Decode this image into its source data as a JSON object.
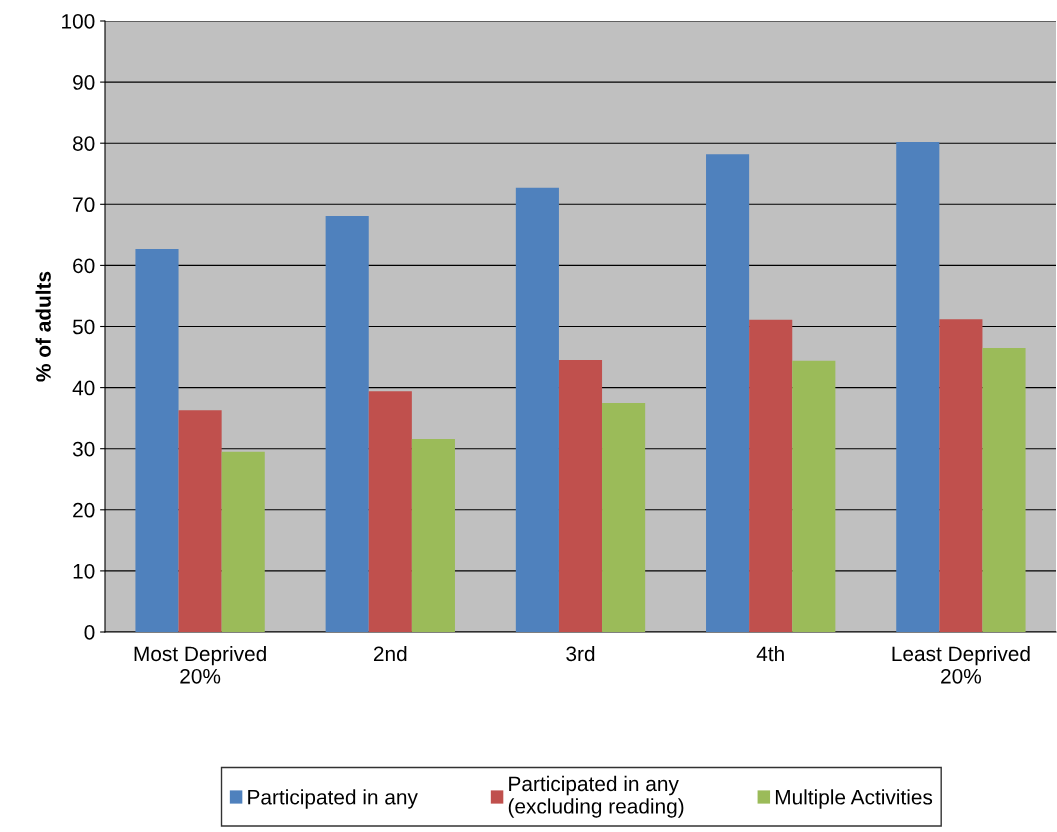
{
  "chart_data": {
    "type": "bar",
    "ylabel": "% of adults",
    "categories": [
      "Most Deprived\n20%",
      "2nd",
      "3rd",
      "4th",
      "Least Deprived\n20%"
    ],
    "series": [
      {
        "name": "Participated in any",
        "color": "#4f81bd",
        "values": [
          62.7,
          68.1,
          72.7,
          78.2,
          80.2
        ]
      },
      {
        "name": "Participated in any\n(excluding reading)",
        "color": "#c0504d",
        "values": [
          36.3,
          39.4,
          44.5,
          51.1,
          51.2
        ]
      },
      {
        "name": "Multiple Activities",
        "color": "#9bbb59",
        "values": [
          29.5,
          31.6,
          37.5,
          44.4,
          46.5
        ]
      }
    ],
    "ylim": [
      0,
      100
    ],
    "yticks": [
      0,
      10,
      20,
      30,
      40,
      50,
      60,
      70,
      80,
      90,
      100
    ],
    "grid": "y",
    "legend": "bottom"
  }
}
